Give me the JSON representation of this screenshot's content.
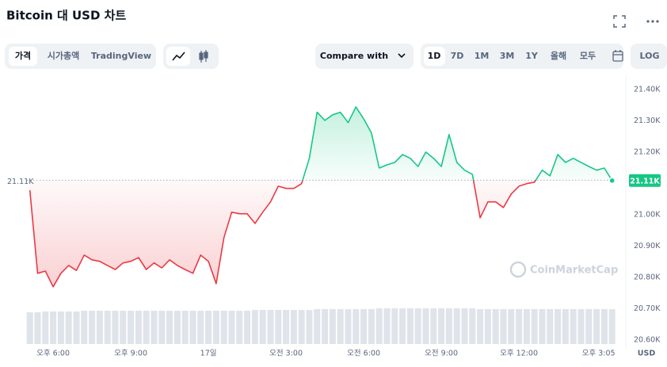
{
  "ui": {
    "tabs": [
      "가격",
      "시가총액",
      "TradingView"
    ],
    "compare": "Compare with",
    "ranges": [
      "1D",
      "7D",
      "1M",
      "3M",
      "1Y",
      "올해",
      "모두"
    ],
    "log": "LOG",
    "watermark": "CoinMarketCap"
  },
  "chart_data": {
    "type": "baseline-line",
    "title": "Bitcoin 대 USD 차트",
    "unit_label": "USD",
    "up_color": "#16c784",
    "down_color": "#ea3943",
    "baseline": 21110,
    "baseline_label": "21.11K",
    "last_label": "21.11K",
    "x": [
      17.1,
      17.4,
      17.7,
      18.0,
      18.3,
      18.6,
      18.9,
      19.2,
      19.5,
      19.8,
      20.1,
      20.4,
      20.7,
      21.0,
      21.3,
      21.6,
      21.9,
      22.2,
      22.5,
      22.8,
      23.1,
      23.4,
      23.7,
      24.0,
      24.3,
      24.6,
      24.9,
      25.2,
      25.5,
      25.8,
      26.1,
      26.4,
      26.7,
      27.0,
      27.3,
      27.6,
      27.9,
      28.2,
      28.5,
      28.8,
      29.1,
      29.4,
      29.7,
      30.0,
      30.3,
      30.6,
      30.9,
      31.2,
      31.5,
      31.8,
      32.1,
      32.4,
      32.7,
      33.0,
      33.3,
      33.6,
      33.9,
      34.2,
      34.5,
      34.8,
      35.1,
      35.4,
      35.7,
      36.0,
      36.3,
      36.6,
      36.9,
      37.2,
      37.5,
      37.8,
      38.1,
      38.4,
      38.7,
      39.0,
      39.3,
      39.6
    ],
    "values": [
      21078,
      20813,
      20820,
      20770,
      20813,
      20838,
      20822,
      20871,
      20856,
      20851,
      20838,
      20825,
      20846,
      20851,
      20863,
      20825,
      20846,
      20830,
      20856,
      20838,
      20825,
      20813,
      20871,
      20851,
      20780,
      20927,
      21008,
      21003,
      21003,
      20972,
      21008,
      21041,
      21091,
      21084,
      21084,
      21099,
      21180,
      21327,
      21301,
      21319,
      21327,
      21294,
      21344,
      21306,
      21261,
      21149,
      21159,
      21167,
      21192,
      21180,
      21154,
      21200,
      21180,
      21154,
      21256,
      21167,
      21142,
      21129,
      20990,
      21041,
      21041,
      21023,
      21066,
      21091,
      21099,
      21104,
      21142,
      21124,
      21192,
      21167,
      21180,
      21167,
      21154,
      21142,
      21149,
      21109
    ],
    "volume": [
      40,
      40,
      41,
      41,
      41,
      41,
      41,
      42,
      42,
      42,
      42,
      42,
      42,
      42,
      42,
      42,
      42,
      42,
      42,
      42,
      42,
      42,
      42,
      42,
      42,
      42,
      42,
      42,
      42,
      43,
      43,
      43,
      43,
      43,
      43,
      43,
      43,
      44,
      44,
      44,
      44,
      44,
      44,
      44,
      44,
      45,
      45,
      45,
      45,
      45,
      45,
      45,
      45,
      45,
      45,
      45,
      45,
      45,
      44,
      44,
      44,
      44,
      44,
      44,
      44,
      44,
      44,
      44,
      44,
      44,
      44,
      44,
      44,
      44,
      44,
      44
    ],
    "xlim": [
      16.13,
      40.13
    ],
    "xticks": [
      {
        "value": 18,
        "label": "오후 6:00"
      },
      {
        "value": 21,
        "label": "오후 9:00"
      },
      {
        "value": 24,
        "label": "17일"
      },
      {
        "value": 27,
        "label": "오전 3:00"
      },
      {
        "value": 30,
        "label": "오전 6:00"
      },
      {
        "value": 33,
        "label": "오전 9:00"
      },
      {
        "value": 36,
        "label": "오후 12:00"
      },
      {
        "value": 39.08,
        "label": "오후 3:05"
      }
    ],
    "ylim": [
      20572,
      21445
    ],
    "yticks": [
      {
        "value": 20600,
        "label": "20.60K"
      },
      {
        "value": 20700,
        "label": "20.70K"
      },
      {
        "value": 20800,
        "label": "20.80K"
      },
      {
        "value": 20900,
        "label": "20.90K"
      },
      {
        "value": 21000,
        "label": "21.00K"
      },
      {
        "value": 21100,
        "label": "21.10K"
      },
      {
        "value": 21200,
        "label": "21.20K"
      },
      {
        "value": 21300,
        "label": "21.30K"
      },
      {
        "value": 21400,
        "label": "21.40K"
      }
    ],
    "grid": false
  }
}
